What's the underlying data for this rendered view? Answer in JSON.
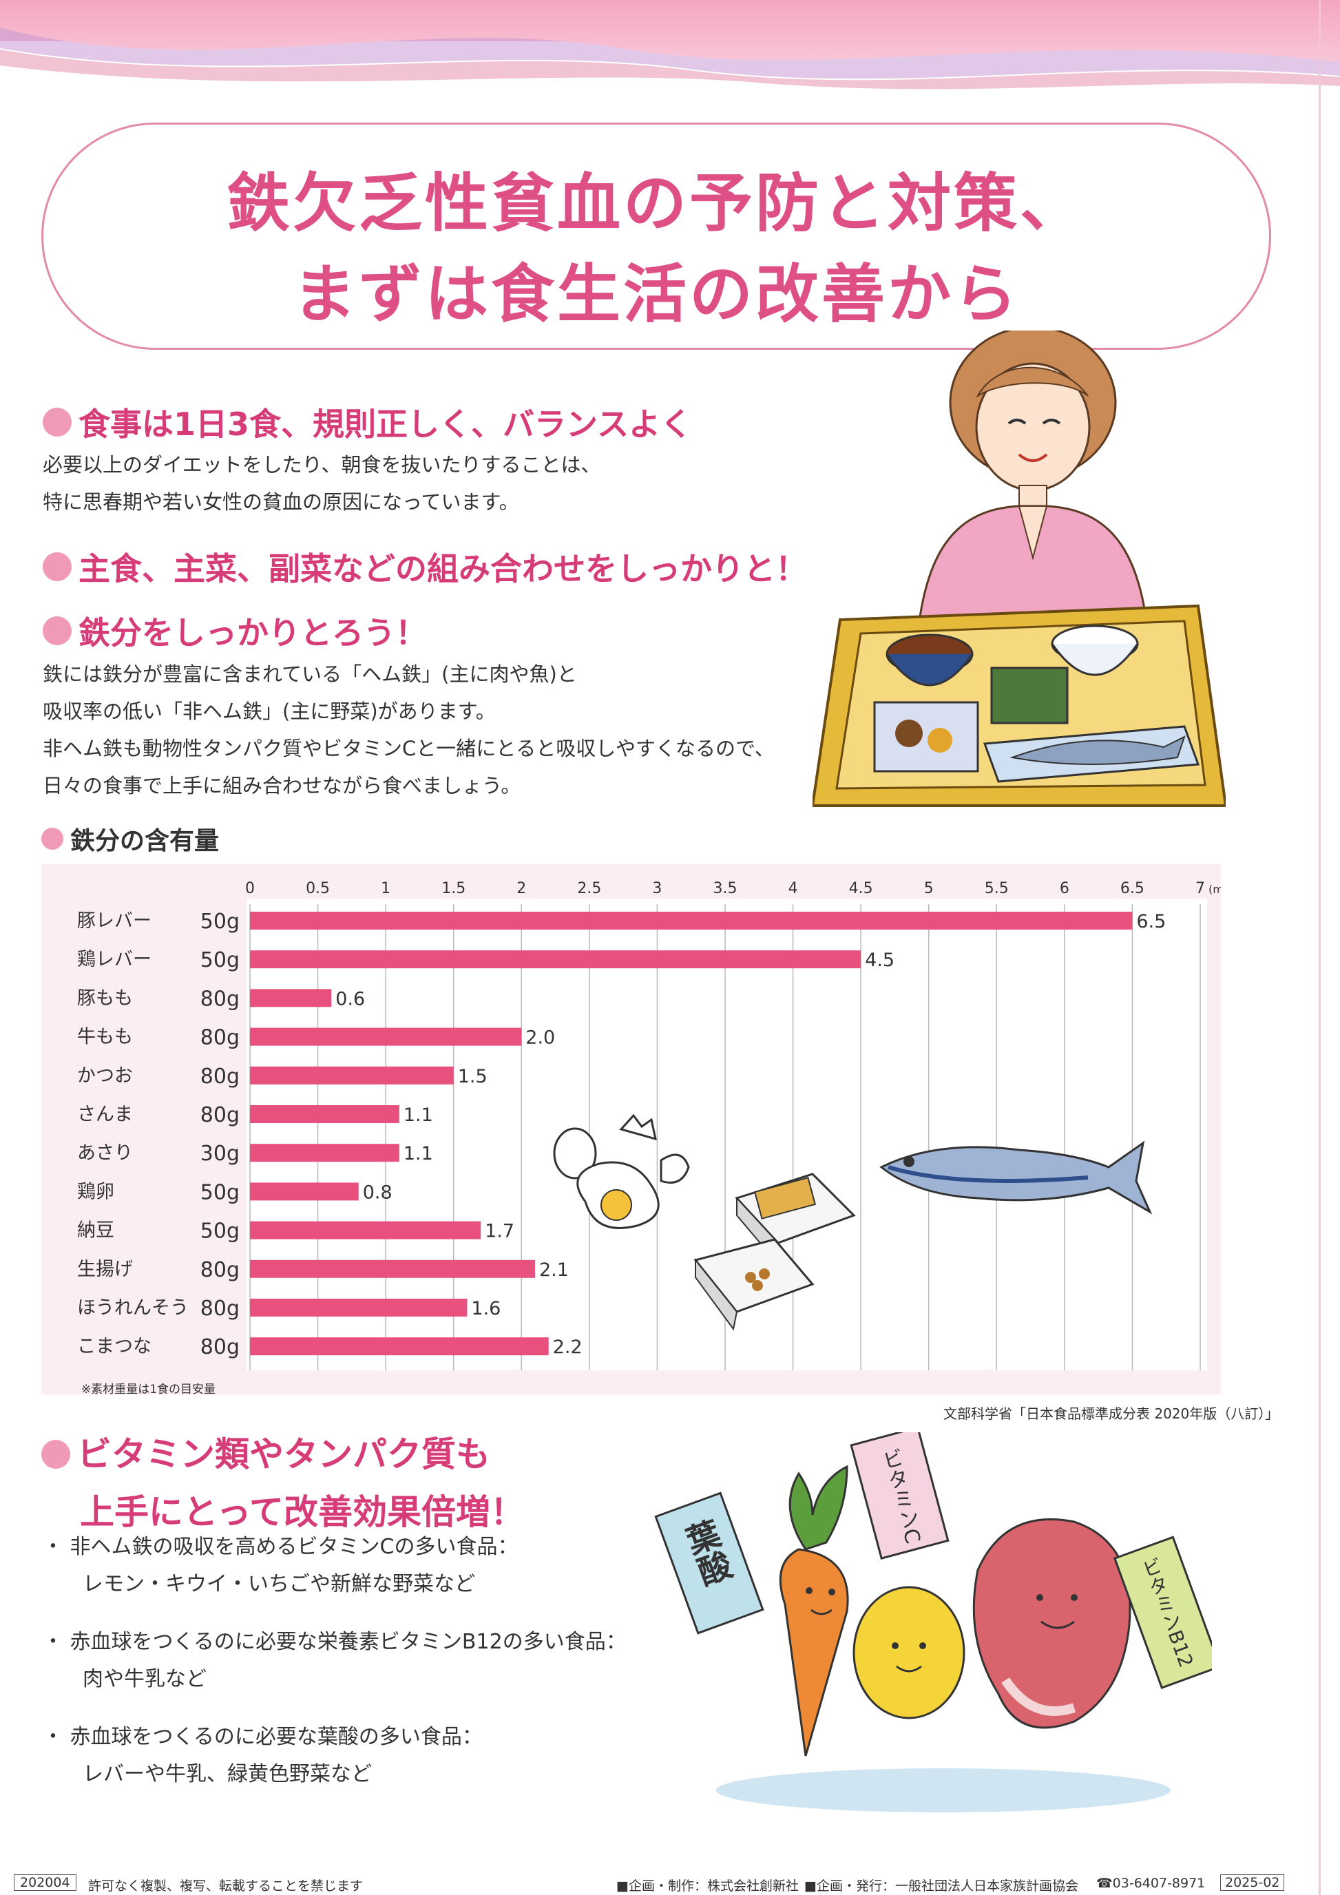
{
  "colors": {
    "accent": "#d63c78",
    "title": "#dd4f85",
    "bar": "#e8507e",
    "panel": "#fbeef2"
  },
  "title": {
    "line1": "鉄欠乏性貧血の予防と対策、",
    "line2": "まずは食生活の改善から"
  },
  "sections": [
    {
      "heading": "食事は1日3食、規則正しく、バランスよく",
      "lines": [
        "必要以上のダイエットをしたり、朝食を抜いたりすることは、",
        "特に思春期や若い女性の貧血の原因になっています。"
      ]
    },
    {
      "heading": "主食、主菜、副菜などの組み合わせをしっかりと！",
      "lines": []
    },
    {
      "heading": "鉄分をしっかりとろう！",
      "lines": [
        "鉄には鉄分が豊富に含まれている「ヘム鉄」(主に肉や魚)と",
        "吸収率の低い「非ヘム鉄」(主に野菜)があります。",
        "非ヘム鉄も動物性タンパク質やビタミンCと一緒にとると吸収しやすくなるので、",
        "日々の食事で上手に組み合わせながら食べましょう。"
      ]
    }
  ],
  "illustrations": {
    "woman": "woman-with-meal-tray",
    "eggs": "eggs",
    "natto": "natto-packs",
    "fish": "saury-fish",
    "veggies": "vegetable-characters"
  },
  "chart_heading": "鉄分の含有量",
  "chart_data": {
    "type": "bar",
    "orientation": "horizontal",
    "unit": "(mg)",
    "xlim": [
      0,
      7
    ],
    "ticks": [
      "0",
      "0.5",
      "1",
      "1.5",
      "2",
      "2.5",
      "3",
      "3.5",
      "4",
      "4.5",
      "5",
      "5.5",
      "6",
      "6.5",
      "7"
    ],
    "categories": [
      "豚レバー",
      "鶏レバー",
      "豚もも",
      "牛もも",
      "かつお",
      "さんま",
      "あさり",
      "鶏卵",
      "納豆",
      "生揚げ",
      "ほうれんそう",
      "こまつな"
    ],
    "amounts": [
      "50g",
      "50g",
      "80g",
      "80g",
      "80g",
      "80g",
      "30g",
      "50g",
      "50g",
      "80g",
      "80g",
      "80g"
    ],
    "values": [
      6.5,
      4.5,
      0.6,
      2.0,
      1.5,
      1.1,
      1.1,
      0.8,
      1.7,
      2.1,
      1.6,
      2.2
    ],
    "value_labels": [
      "6.5",
      "4.5",
      "0.6",
      "2.0",
      "1.5",
      "1.1",
      "1.1",
      "0.8",
      "1.7",
      "2.1",
      "1.6",
      "2.2"
    ],
    "note": "※素材重量は1食の目安量",
    "source": "文部科学省「日本食品標準成分表 2020年版（八訂）」",
    "grid": true
  },
  "vitamins": {
    "heading_line1": "ビタミン類やタンパク質も",
    "heading_line2": "上手にとって改善効果倍増！",
    "bullets": [
      {
        "line1": "・ 非ヘム鉄の吸収を高めるビタミンCの多い食品：",
        "line2": "レモン・キウイ・いちごや新鮮な野菜など"
      },
      {
        "line1": "・ 赤血球をつくるのに必要な栄養素ビタミンB12の多い食品：",
        "line2": "肉や牛乳など"
      },
      {
        "line1": "・ 赤血球をつくるのに必要な葉酸の多い食品：",
        "line2": "レバーや牛乳、緑黄色野菜など"
      }
    ],
    "signs": {
      "folate": "葉酸",
      "vitc": "ビタミンC",
      "vitb12": "ビタミンB12"
    }
  },
  "footer": {
    "code": "202004",
    "copyright": "許可なく複製、複写、転載することを禁じます",
    "credit1": "■企画・制作：株式会社創新社",
    "credit2": "■企画・発行：一般社団法人日本家族計画協会",
    "tel": "☎03-6407-8971",
    "edition": "2025-02"
  }
}
